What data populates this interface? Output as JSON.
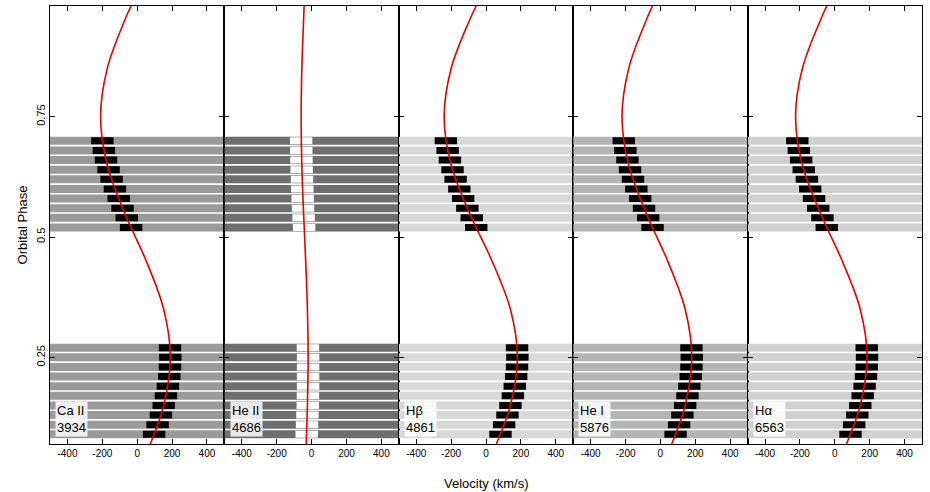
{
  "chart_data": {
    "type": "scatter",
    "x_label": "Velocity (km/s)",
    "y_label": "Orbital Phase",
    "xlim": [
      -500,
      500
    ],
    "xticks": [
      -400,
      -200,
      0,
      200,
      400
    ],
    "ylim": [
      0.07,
      0.98
    ],
    "yticks": [
      0.25,
      0.5,
      0.75
    ],
    "grid": false,
    "spectrum_phases": [
      0.09,
      0.11,
      0.13,
      0.15,
      0.17,
      0.19,
      0.21,
      0.23,
      0.25,
      0.27,
      0.52,
      0.54,
      0.56,
      0.58,
      0.6,
      0.62,
      0.64,
      0.66,
      0.68,
      0.7
    ],
    "curve_phases": [
      0.07,
      0.15,
      0.25,
      0.35,
      0.45,
      0.55,
      0.65,
      0.75,
      0.85,
      0.95,
      0.98
    ],
    "panels": [
      {
        "name": "Ca II",
        "wavelength": 3934,
        "strip_color": "#9a9a9a",
        "line_color": "#000000",
        "line_velocity": [
          97,
          117,
          136,
          152,
          165,
          176,
          184,
          188,
          190,
          188,
          -35,
          -60,
          -84,
          -106,
          -128,
          -147,
          -164,
          -179,
          -191,
          -200
        ],
        "curve": {
          "color": "#e00000",
          "velocity": [
            75,
            152,
            190,
            152,
            52,
            -72,
            -172,
            -210,
            -172,
            -72,
            -35
          ]
        }
      },
      {
        "name": "He II",
        "wavelength": 4686,
        "strip_color": "#6e6e6e",
        "line_color": "#ffffff",
        "line_velocity": [
          -28,
          -26,
          -24,
          -22,
          -21,
          -20,
          -20,
          -20,
          -20,
          -21,
          -43,
          -46,
          -49,
          -51,
          -53,
          -55,
          -57,
          -58,
          -59,
          -60
        ],
        "curve": {
          "color": "#e00000",
          "velocity": [
            -31,
            -24,
            -20,
            -24,
            -34,
            -46,
            -56,
            -60,
            -56,
            -46,
            -43
          ]
        }
      },
      {
        "name": "Hβ",
        "wavelength": 4861,
        "strip_color": "#d8d8d8",
        "line_color": "#000000",
        "line_velocity": [
          83,
          104,
          123,
          140,
          154,
          165,
          173,
          178,
          180,
          178,
          -56,
          -82,
          -107,
          -131,
          -153,
          -174,
          -192,
          -207,
          -220,
          -230
        ],
        "curve": {
          "color": "#e00000",
          "velocity": [
            59,
            140,
            180,
            140,
            35,
            -95,
            -200,
            -240,
            -200,
            -95,
            -56
          ]
        }
      },
      {
        "name": "He I",
        "wavelength": 5876,
        "strip_color": "#b4b4b4",
        "line_color": "#000000",
        "line_velocity": [
          87,
          107,
          126,
          142,
          155,
          166,
          174,
          178,
          180,
          178,
          -45,
          -70,
          -94,
          -116,
          -138,
          -157,
          -174,
          -189,
          -201,
          -210
        ],
        "curve": {
          "color": "#e00000",
          "velocity": [
            65,
            142,
            180,
            142,
            42,
            -82,
            -182,
            -220,
            -182,
            -82,
            -45
          ]
        }
      },
      {
        "name": "Hα",
        "wavelength": 6563,
        "strip_color": "#d0d0d0",
        "line_color": "#000000",
        "line_velocity": [
          90,
          111,
          129,
          146,
          160,
          171,
          179,
          183,
          185,
          183,
          -46,
          -71,
          -95,
          -119,
          -141,
          -160,
          -178,
          -193,
          -206,
          -215
        ],
        "curve": {
          "color": "#e00000",
          "velocity": [
            67,
            146,
            185,
            146,
            43,
            -83,
            -186,
            -225,
            -186,
            -83,
            -46
          ]
        }
      }
    ]
  }
}
